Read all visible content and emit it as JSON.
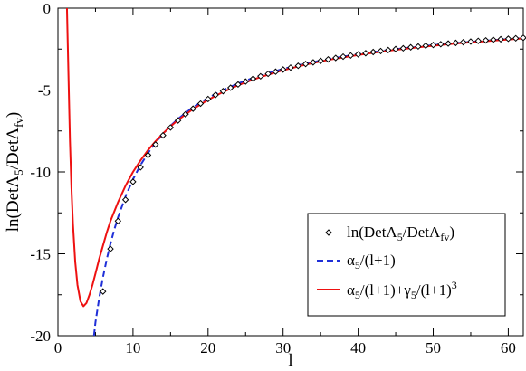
{
  "chart_data": {
    "type": "line",
    "xlabel": "l",
    "ylabel_parts": {
      "main": "ln(DetΛ",
      "sub1": "5",
      "mid": "/DetΛ",
      "sub2": "fv",
      "end": ")"
    },
    "xlim": [
      0,
      62
    ],
    "ylim": [
      -20,
      0
    ],
    "x_ticks": [
      0,
      10,
      20,
      30,
      40,
      50,
      60
    ],
    "y_ticks": [
      0,
      -5,
      -10,
      -15,
      -20
    ],
    "grid": false,
    "legend_position": "lower-right",
    "series": [
      {
        "key": "points",
        "label": {
          "main": "ln(DetΛ",
          "sub1": "5",
          "mid": "/DetΛ",
          "sub2": "fv",
          "end": ")"
        },
        "style": "markers",
        "marker": "diamond",
        "color": "#000000",
        "x": [
          6,
          7,
          8,
          9,
          10,
          11,
          12,
          13,
          14,
          15,
          16,
          17,
          18,
          19,
          20,
          21,
          22,
          23,
          24,
          25,
          26,
          27,
          28,
          29,
          30,
          31,
          32,
          33,
          34,
          35,
          36,
          37,
          38,
          39,
          40,
          41,
          42,
          43,
          44,
          45,
          46,
          47,
          48,
          49,
          50,
          51,
          52,
          53,
          54,
          55,
          56,
          57,
          58,
          59,
          60,
          61,
          62
        ],
        "y": [
          -17.3,
          -14.7,
          -13.0,
          -11.7,
          -10.6,
          -9.72,
          -8.97,
          -8.33,
          -7.77,
          -7.29,
          -6.86,
          -6.48,
          -6.14,
          -5.83,
          -5.55,
          -5.3,
          -5.07,
          -4.86,
          -4.66,
          -4.48,
          -4.31,
          -4.16,
          -4.01,
          -3.88,
          -3.75,
          -3.63,
          -3.52,
          -3.41,
          -3.31,
          -3.22,
          -3.13,
          -3.04,
          -2.96,
          -2.89,
          -2.82,
          -2.75,
          -2.68,
          -2.62,
          -2.56,
          -2.5,
          -2.45,
          -2.39,
          -2.34,
          -2.29,
          -2.25,
          -2.2,
          -2.16,
          -2.12,
          -2.08,
          -2.04,
          -2.0,
          -1.97,
          -1.93,
          -1.9,
          -1.87,
          -1.84,
          -1.81
        ]
      },
      {
        "key": "fit1",
        "label": {
          "alpha": "α",
          "sub": "5",
          "rest": "/(l+1)"
        },
        "style": "dashed",
        "color": "#1f2fd8",
        "x": [
          4.8,
          5,
          5.5,
          6,
          6.5,
          7,
          7.5,
          8,
          9,
          10,
          11,
          12,
          13,
          14,
          15,
          16,
          18,
          20,
          22,
          24,
          26,
          28,
          30,
          33,
          36,
          40,
          44,
          48,
          52,
          56,
          60,
          62
        ],
        "y": [
          -20.0,
          -19.17,
          -17.69,
          -16.43,
          -15.33,
          -14.38,
          -13.53,
          -12.78,
          -11.5,
          -10.45,
          -9.58,
          -8.85,
          -8.21,
          -7.67,
          -7.19,
          -6.76,
          -6.05,
          -5.48,
          -5.0,
          -4.6,
          -4.26,
          -3.97,
          -3.71,
          -3.38,
          -3.11,
          -2.81,
          -2.56,
          -2.35,
          -2.17,
          -2.02,
          -1.89,
          -1.83
        ]
      },
      {
        "key": "fit2",
        "label": {
          "alpha": "α",
          "sub1": "5",
          "mid": "/(l+1)+",
          "gamma": "γ",
          "sub2": "5",
          "rest": "/(l+1)",
          "sup": "3"
        },
        "style": "solid",
        "color": "#ee1111",
        "x": [
          1.2,
          1.4,
          1.6,
          1.8,
          2.0,
          2.3,
          2.6,
          3.0,
          3.4,
          3.8,
          4.2,
          4.6,
          5,
          5.5,
          6,
          6.5,
          7,
          8,
          9,
          10,
          11,
          12,
          13,
          14,
          15,
          16,
          18,
          20,
          22,
          24,
          26,
          28,
          30,
          33,
          36,
          40,
          44,
          48,
          52,
          56,
          60,
          62
        ],
        "y": [
          0,
          -4.1,
          -8.1,
          -11.0,
          -13.2,
          -15.5,
          -16.9,
          -17.9,
          -18.2,
          -18.0,
          -17.5,
          -16.9,
          -16.2,
          -15.3,
          -14.5,
          -13.7,
          -13.0,
          -11.85,
          -10.85,
          -10.0,
          -9.3,
          -8.67,
          -8.13,
          -7.65,
          -7.22,
          -6.83,
          -6.16,
          -5.6,
          -5.12,
          -4.71,
          -4.36,
          -4.06,
          -3.79,
          -3.45,
          -3.16,
          -2.86,
          -2.6,
          -2.39,
          -2.2,
          -2.05,
          -1.91,
          -1.85
        ]
      }
    ]
  }
}
